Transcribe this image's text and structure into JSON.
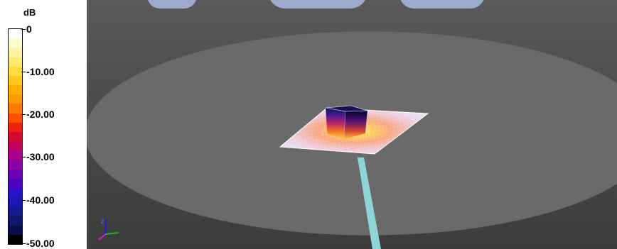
{
  "legend": {
    "unit": "dB",
    "ticks": [
      "0",
      "-10.00",
      "-20.00",
      "-30.00",
      "-40.00",
      "-50.00"
    ],
    "colors": [
      "#ffffff",
      "#fffbd0",
      "#fff3a0",
      "#ffe970",
      "#ffdc40",
      "#ffc820",
      "#ffb000",
      "#ff9a00",
      "#ff7a00",
      "#ff5000",
      "#f02010",
      "#d00a30",
      "#c00060",
      "#a8008c",
      "#8a00a8",
      "#6a00b4",
      "#4c00c0",
      "#2a10c8",
      "#1a18b0",
      "#141a8c",
      "#10186a",
      "#0a0e48",
      "#000000"
    ]
  },
  "scene": {
    "ground_color": "#6a6a6a",
    "beam_color": "#8fd4d6",
    "watermark_color": "#a9b8e0",
    "axis_colors": {
      "x": "#20b020",
      "y": "#2020d0",
      "z": "#d020d0"
    }
  }
}
